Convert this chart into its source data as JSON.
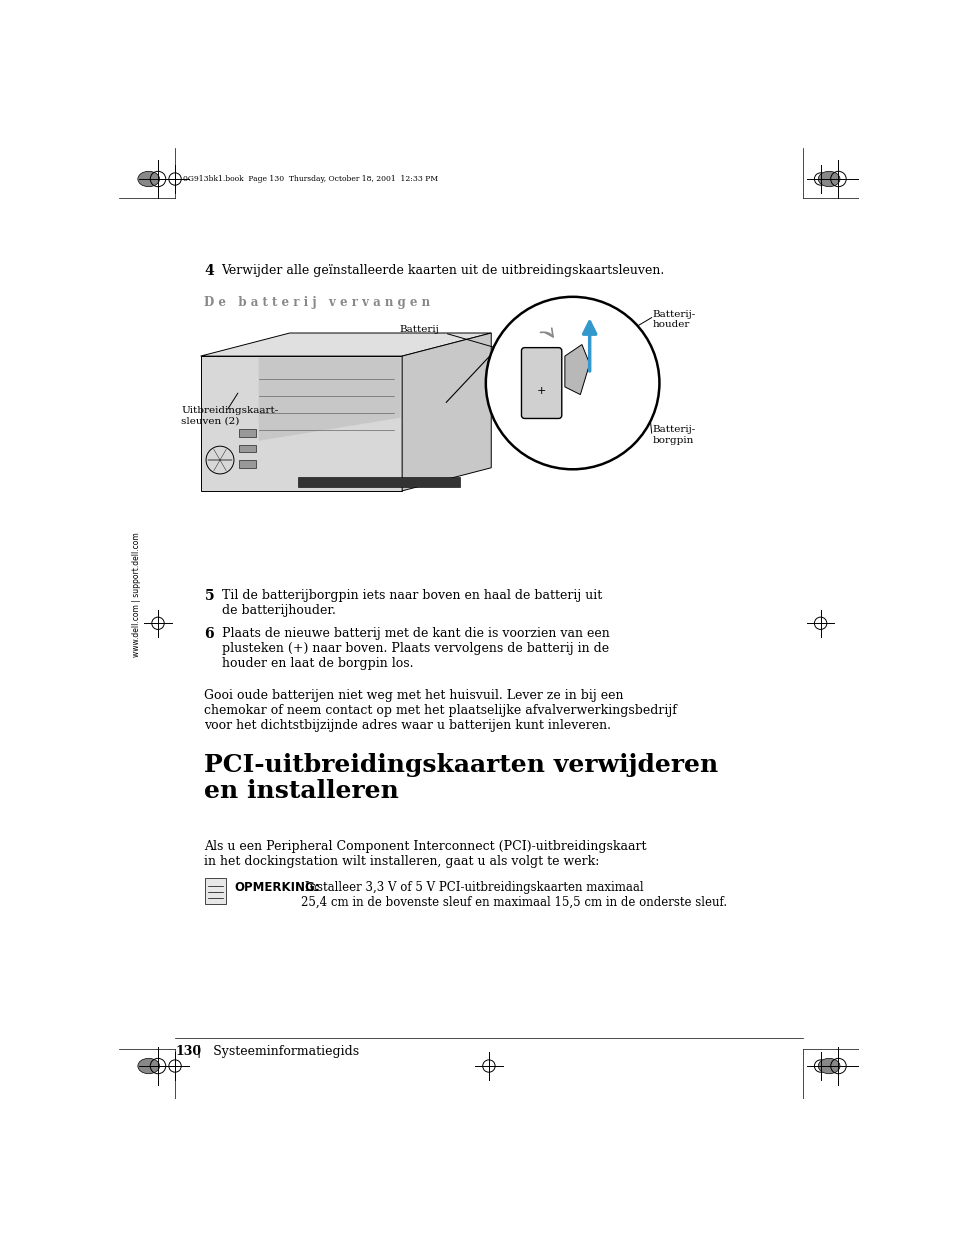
{
  "bg_color": "#ffffff",
  "page_width": 9.54,
  "page_height": 12.35,
  "header_text": "0G913bk1.book  Page 130  Thursday, October 18, 2001  12:33 PM",
  "side_text": "www.dell.com | support.dell.com",
  "footer_page": "130",
  "footer_text": "Systeeminformatiegids",
  "step4_number": "4",
  "step4_text": "Verwijder alle geïnstalleerde kaarten uit de uitbreidingskaartsleuven.",
  "section_title": "D e   b a t t e r i j   v e r v a n g e n",
  "label_batterij": "Batterij",
  "label_batterijhouder": "Batterij-\nhouder",
  "label_uitbreidingskaart": "Uitbreidingskaart-\nsleuven (2)",
  "label_batterijborgpin": "Batterij-\nborgpin",
  "step5_number": "5",
  "step5_text": "Til de batterijborgpin iets naar boven en haal de batterij uit\nde batterijhouder.",
  "step6_number": "6",
  "step6_text": "Plaats de nieuwe batterij met de kant die is voorzien van een\nplusteken (+) naar boven. Plaats vervolgens de batterij in de\nhouder en laat de borgpin los.",
  "warning_text": "Gooi oude batterijen niet weg met het huisvuil. Lever ze in bij een\nchemokar of neem contact op met het plaatselijke afvalverwerkingsbedrijf\nvoor het dichtstbijzijnde adres waar u batterijen kunt inleveren.",
  "section2_title": "PCI-uitbreidingskaarten verwijderen\nen installeren",
  "intro_text": "Als u een Peripheral Component Interconnect (PCI)-uitbreidingskaart\nin het dockingstation wilt installeren, gaat u als volgt te werk:",
  "note_label": "OPMERKING:",
  "note_text": " Installeer 3,3 V of 5 V PCI-uitbreidingskaarten maximaal\n25,4 cm in de bovenste sleuf en maximaal 15,5 cm in de onderste sleuf.",
  "text_color": "#000000",
  "blue_color": "#3399cc",
  "gray_color": "#888888",
  "light_gray": "#d0d0d0"
}
